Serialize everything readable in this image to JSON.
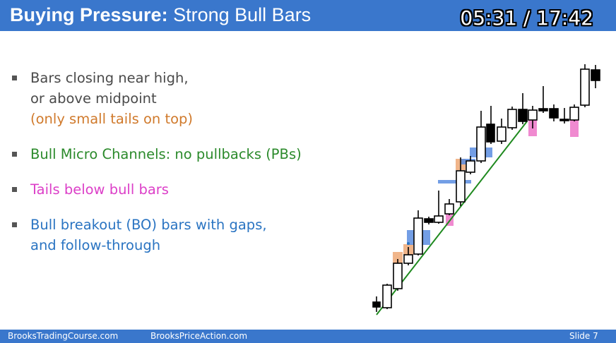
{
  "header": {
    "title_bold": "Buying Pressure:",
    "title_rest": "Strong Bull Bars",
    "timer": "05:31 / 17:42"
  },
  "bullets": [
    {
      "lines": [
        "Bars closing near high,",
        "or above midpoint",
        "(only small tails on top)"
      ]
    },
    {
      "lines": [
        "Bull Micro Channels: no pullbacks (PBs)"
      ]
    },
    {
      "lines": [
        "Tails below bull bars"
      ]
    },
    {
      "lines": [
        "Bull breakout (BO) bars with gaps,",
        "and follow-through"
      ]
    }
  ],
  "colors": {
    "header_bg": "#3a77cc",
    "gray_text": "#4a4a4a",
    "orange": "#d07a2c",
    "green": "#2b8a2b",
    "magenta": "#dc3fc8",
    "blue": "#2a74c2",
    "orange_highlight": "#f0b58a",
    "blue_highlight": "#5a8de0",
    "pink_highlight": "#f08ad0",
    "trendline": "#1f8a1f"
  },
  "footer": {
    "left": "BrooksTradingCourse.com",
    "middle": "BrooksPriceAction.com",
    "slide": "Slide  7"
  }
}
